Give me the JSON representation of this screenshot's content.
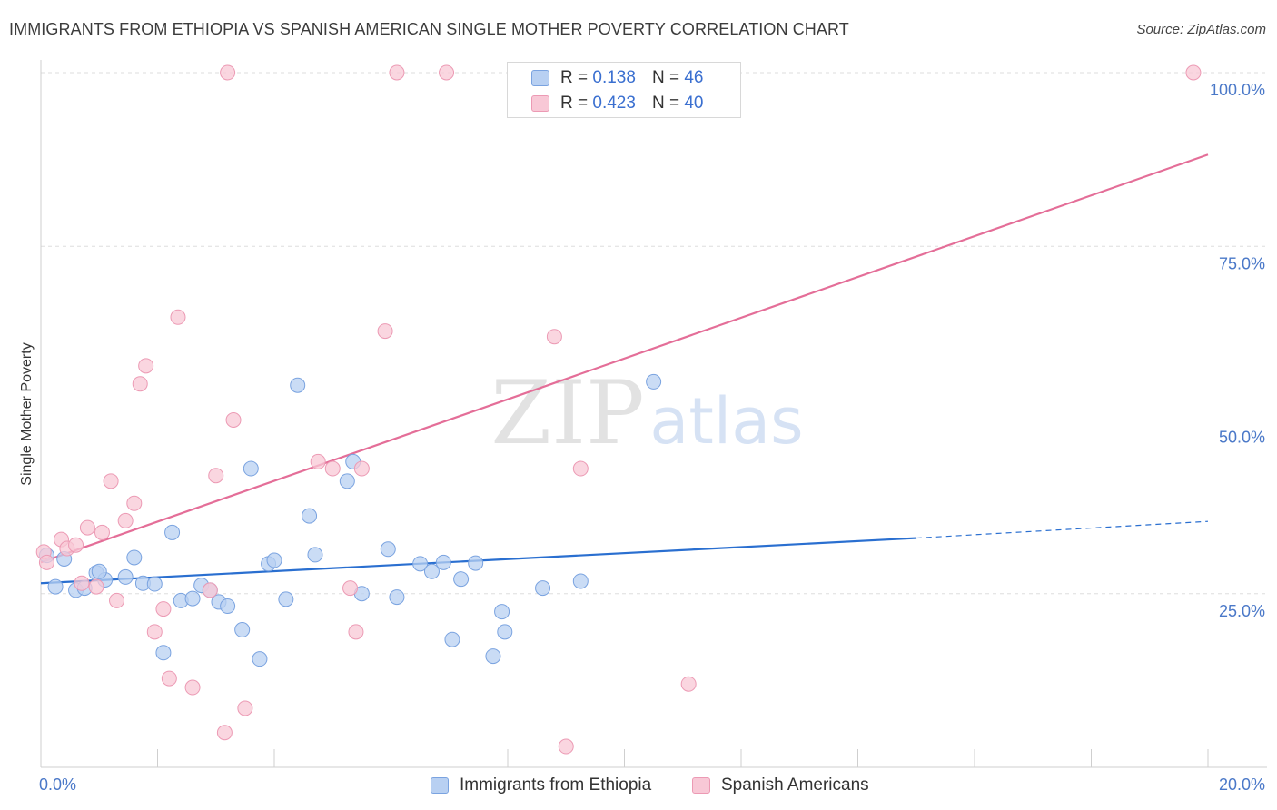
{
  "header": {
    "title": "IMMIGRANTS FROM ETHIOPIA VS SPANISH AMERICAN SINGLE MOTHER POVERTY CORRELATION CHART",
    "source": "Source: ZipAtlas.com"
  },
  "watermark": {
    "zip": "ZIP",
    "atlas": "atlas"
  },
  "legend_top": {
    "rows": [
      {
        "r_label": "R =",
        "r_value": "0.138",
        "n_label": "N =",
        "n_value": "46"
      },
      {
        "r_label": "R =",
        "r_value": "0.423",
        "n_label": "N =",
        "n_value": "40"
      }
    ]
  },
  "legend_bottom": {
    "items": [
      {
        "label": "Immigrants from Ethiopia"
      },
      {
        "label": "Spanish Americans"
      }
    ]
  },
  "colors": {
    "blue_fill": "#b8d0f2",
    "blue_stroke": "#7aa3e0",
    "blue_line": "#2a6fd0",
    "pink_fill": "#f8c8d6",
    "pink_stroke": "#ec9ab4",
    "pink_line": "#e46e98",
    "tick_label": "#4a78c8",
    "grid": "#dddddd"
  },
  "chart_data": {
    "type": "scatter",
    "title": "IMMIGRANTS FROM ETHIOPIA VS SPANISH AMERICAN SINGLE MOTHER POVERTY CORRELATION CHART",
    "xlabel": "",
    "ylabel": "Single Mother Poverty",
    "xlim": [
      0,
      20
    ],
    "ylim": [
      0,
      102
    ],
    "x_tick_labels": [
      "0.0%",
      "20.0%"
    ],
    "y_ticks": [
      25,
      50,
      75,
      100
    ],
    "y_tick_labels": [
      "25.0%",
      "50.0%",
      "75.0%",
      "100.0%"
    ],
    "grid": "horizontal dashed",
    "legend_position": "top-center",
    "series": [
      {
        "name": "Immigrants from Ethiopia",
        "color": "#b8d0f2",
        "r": 0.138,
        "n": 46,
        "trend": {
          "x": [
            0,
            15
          ],
          "y": [
            26.5,
            33.0
          ],
          "dashed_to": [
            20,
            35.4
          ]
        },
        "points": [
          [
            0.1,
            30.5
          ],
          [
            0.25,
            26.0
          ],
          [
            0.4,
            30.0
          ],
          [
            0.6,
            25.5
          ],
          [
            0.75,
            25.8
          ],
          [
            0.95,
            28.0
          ],
          [
            1.1,
            27.0
          ],
          [
            1.0,
            28.2
          ],
          [
            1.45,
            27.4
          ],
          [
            1.6,
            30.2
          ],
          [
            1.75,
            26.5
          ],
          [
            1.95,
            26.4
          ],
          [
            2.1,
            16.5
          ],
          [
            2.25,
            33.8
          ],
          [
            2.4,
            24.0
          ],
          [
            2.6,
            24.3
          ],
          [
            2.75,
            26.2
          ],
          [
            2.9,
            25.5
          ],
          [
            3.05,
            23.8
          ],
          [
            3.2,
            23.2
          ],
          [
            3.45,
            19.8
          ],
          [
            3.6,
            43.0
          ],
          [
            3.75,
            15.6
          ],
          [
            3.9,
            29.3
          ],
          [
            4.0,
            29.8
          ],
          [
            4.2,
            24.2
          ],
          [
            4.4,
            55.0
          ],
          [
            4.6,
            36.2
          ],
          [
            4.7,
            30.6
          ],
          [
            5.25,
            41.2
          ],
          [
            5.35,
            44.0
          ],
          [
            5.5,
            25.0
          ],
          [
            5.95,
            31.4
          ],
          [
            6.1,
            24.5
          ],
          [
            6.5,
            29.3
          ],
          [
            6.7,
            28.2
          ],
          [
            6.9,
            29.5
          ],
          [
            7.05,
            18.4
          ],
          [
            7.2,
            27.1
          ],
          [
            7.45,
            29.4
          ],
          [
            7.75,
            16.0
          ],
          [
            7.9,
            22.4
          ],
          [
            7.95,
            19.5
          ],
          [
            8.6,
            25.8
          ],
          [
            9.25,
            26.8
          ],
          [
            10.5,
            55.5
          ]
        ]
      },
      {
        "name": "Spanish Americans",
        "color": "#f8c8d6",
        "r": 0.423,
        "n": 40,
        "trend": {
          "x": [
            0,
            20
          ],
          "y": [
            29.5,
            88.2
          ]
        },
        "points": [
          [
            0.05,
            31.0
          ],
          [
            0.1,
            29.5
          ],
          [
            0.35,
            32.8
          ],
          [
            0.45,
            31.5
          ],
          [
            0.6,
            32.0
          ],
          [
            0.7,
            26.5
          ],
          [
            0.8,
            34.5
          ],
          [
            0.95,
            26.0
          ],
          [
            1.05,
            33.8
          ],
          [
            1.2,
            41.2
          ],
          [
            1.3,
            24.0
          ],
          [
            1.45,
            35.5
          ],
          [
            1.6,
            38.0
          ],
          [
            1.7,
            55.2
          ],
          [
            1.8,
            57.8
          ],
          [
            1.95,
            19.5
          ],
          [
            2.1,
            22.8
          ],
          [
            2.2,
            12.8
          ],
          [
            2.35,
            64.8
          ],
          [
            2.6,
            11.5
          ],
          [
            2.9,
            25.5
          ],
          [
            3.0,
            42.0
          ],
          [
            3.15,
            5.0
          ],
          [
            3.2,
            100.0
          ],
          [
            3.3,
            50.0
          ],
          [
            3.5,
            8.5
          ],
          [
            4.75,
            44.0
          ],
          [
            5.0,
            43.0
          ],
          [
            5.3,
            25.8
          ],
          [
            5.4,
            19.5
          ],
          [
            5.5,
            43.0
          ],
          [
            5.9,
            62.8
          ],
          [
            6.1,
            100.0
          ],
          [
            6.95,
            100.0
          ],
          [
            8.8,
            62.0
          ],
          [
            9.0,
            3.0
          ],
          [
            9.25,
            43.0
          ],
          [
            10.9,
            100.0
          ],
          [
            11.1,
            12.0
          ],
          [
            19.75,
            100.0
          ]
        ]
      }
    ]
  }
}
